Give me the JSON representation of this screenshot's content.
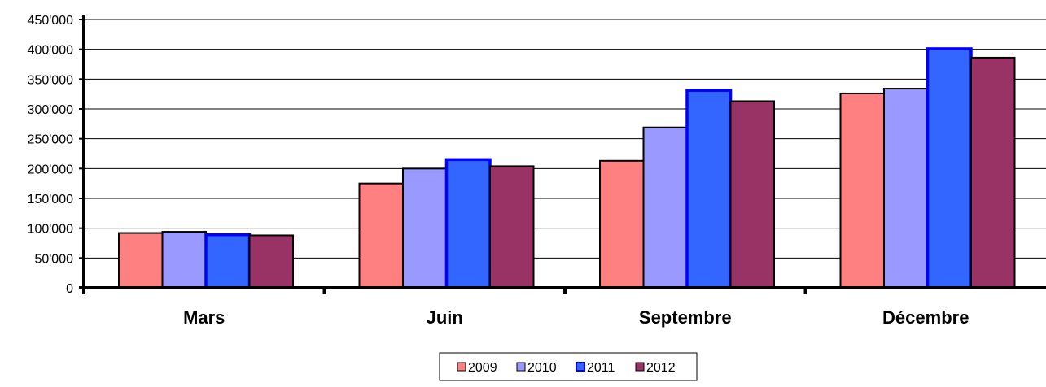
{
  "chart_data": {
    "type": "bar",
    "categories": [
      "Mars",
      "Juin",
      "Septembre",
      "Décembre"
    ],
    "series": [
      {
        "name": "2009",
        "values": [
          92000,
          175000,
          213000,
          326000
        ],
        "fill": "#ff8080",
        "stroke": "#000000"
      },
      {
        "name": "2010",
        "values": [
          94000,
          200000,
          269000,
          334000
        ],
        "fill": "#9999ff",
        "stroke": "#000000"
      },
      {
        "name": "2011",
        "values": [
          89000,
          215000,
          331000,
          401000
        ],
        "fill": "#3366ff",
        "stroke": "#0000ff"
      },
      {
        "name": "2012",
        "values": [
          88000,
          204000,
          313000,
          386000
        ],
        "fill": "#993366",
        "stroke": "#000000"
      }
    ],
    "y_ticks": [
      "0",
      "50'000",
      "100'000",
      "150'000",
      "200'000",
      "250'000",
      "300'000",
      "350'000",
      "400'000",
      "450'000"
    ],
    "ylim": [
      0,
      450000
    ],
    "grid": true,
    "legend_position": "bottom"
  }
}
